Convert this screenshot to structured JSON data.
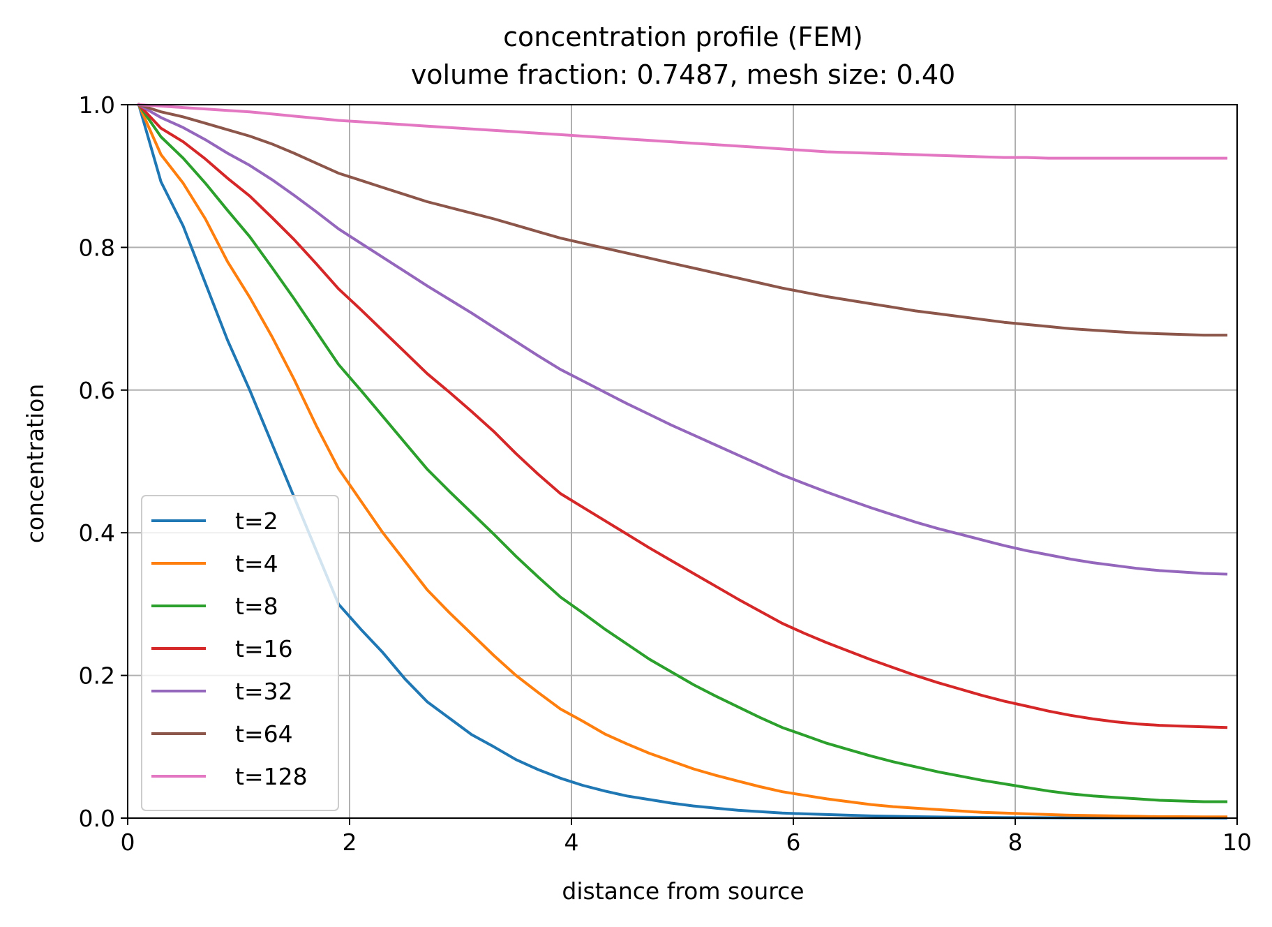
{
  "chart_data": {
    "type": "line",
    "title": "concentration profile (FEM)",
    "subtitle": "volume fraction: 0.7487, mesh size: 0.40",
    "xlabel": "distance from source",
    "ylabel": "concentration",
    "xlim": [
      0,
      10
    ],
    "ylim": [
      0,
      1
    ],
    "xticks": [
      "0",
      "2",
      "4",
      "6",
      "8",
      "10"
    ],
    "yticks": [
      "0.0",
      "0.2",
      "0.4",
      "0.6",
      "0.8",
      "1.0"
    ],
    "grid": true,
    "legend_position": "lower-left",
    "x": [
      0.1,
      0.3,
      0.5,
      0.7,
      0.9,
      1.1,
      1.3,
      1.5,
      1.7,
      1.9,
      2.1,
      2.3,
      2.5,
      2.7,
      2.9,
      3.1,
      3.3,
      3.5,
      3.7,
      3.9,
      4.1,
      4.3,
      4.5,
      4.7,
      4.9,
      5.1,
      5.3,
      5.5,
      5.7,
      5.9,
      6.1,
      6.3,
      6.5,
      6.7,
      6.9,
      7.1,
      7.3,
      7.5,
      7.7,
      7.9,
      8.1,
      8.3,
      8.5,
      8.7,
      8.9,
      9.1,
      9.3,
      9.5,
      9.7,
      9.9
    ],
    "series": [
      {
        "name": "t=2",
        "color": "#1f77b4",
        "values": [
          1.0,
          0.892,
          0.83,
          0.75,
          0.67,
          0.6,
          0.525,
          0.45,
          0.375,
          0.3,
          0.265,
          0.232,
          0.195,
          0.163,
          0.14,
          0.117,
          0.1,
          0.082,
          0.068,
          0.056,
          0.046,
          0.038,
          0.031,
          0.026,
          0.021,
          0.017,
          0.014,
          0.011,
          0.009,
          0.007,
          0.006,
          0.005,
          0.004,
          0.003,
          0.0025,
          0.002,
          0.0016,
          0.0013,
          0.001,
          0.0008,
          0.0006,
          0.0005,
          0.0004,
          0.0003,
          0.0002,
          0.0002,
          0.0001,
          0.0001,
          0.0001,
          0.0
        ]
      },
      {
        "name": "t=4",
        "color": "#ff7f0e",
        "values": [
          1.0,
          0.93,
          0.89,
          0.84,
          0.78,
          0.73,
          0.675,
          0.615,
          0.55,
          0.49,
          0.445,
          0.4,
          0.36,
          0.32,
          0.288,
          0.258,
          0.228,
          0.2,
          0.176,
          0.153,
          0.136,
          0.118,
          0.104,
          0.091,
          0.08,
          0.069,
          0.06,
          0.052,
          0.044,
          0.037,
          0.032,
          0.027,
          0.023,
          0.019,
          0.016,
          0.014,
          0.012,
          0.01,
          0.008,
          0.007,
          0.006,
          0.005,
          0.004,
          0.0035,
          0.003,
          0.0025,
          0.002,
          0.002,
          0.0018,
          0.0017
        ]
      },
      {
        "name": "t=8",
        "color": "#2ca02c",
        "values": [
          1.0,
          0.955,
          0.925,
          0.89,
          0.852,
          0.815,
          0.772,
          0.728,
          0.682,
          0.636,
          0.6,
          0.563,
          0.526,
          0.489,
          0.458,
          0.428,
          0.398,
          0.367,
          0.338,
          0.31,
          0.288,
          0.265,
          0.244,
          0.223,
          0.205,
          0.187,
          0.171,
          0.156,
          0.141,
          0.127,
          0.116,
          0.105,
          0.096,
          0.087,
          0.079,
          0.072,
          0.065,
          0.059,
          0.053,
          0.048,
          0.043,
          0.038,
          0.034,
          0.031,
          0.029,
          0.027,
          0.025,
          0.024,
          0.023,
          0.023
        ]
      },
      {
        "name": "t=16",
        "color": "#d62728",
        "values": [
          1.0,
          0.967,
          0.948,
          0.924,
          0.897,
          0.872,
          0.842,
          0.811,
          0.777,
          0.742,
          0.713,
          0.683,
          0.653,
          0.623,
          0.597,
          0.57,
          0.542,
          0.511,
          0.482,
          0.455,
          0.436,
          0.417,
          0.398,
          0.379,
          0.361,
          0.343,
          0.325,
          0.307,
          0.29,
          0.273,
          0.259,
          0.246,
          0.234,
          0.222,
          0.211,
          0.2,
          0.19,
          0.181,
          0.172,
          0.164,
          0.157,
          0.15,
          0.144,
          0.139,
          0.135,
          0.132,
          0.13,
          0.129,
          0.128,
          0.127
        ]
      },
      {
        "name": "t=32",
        "color": "#9467bd",
        "values": [
          1.0,
          0.982,
          0.968,
          0.951,
          0.932,
          0.915,
          0.895,
          0.873,
          0.85,
          0.826,
          0.806,
          0.786,
          0.766,
          0.746,
          0.727,
          0.708,
          0.688,
          0.668,
          0.648,
          0.629,
          0.613,
          0.597,
          0.581,
          0.566,
          0.551,
          0.537,
          0.523,
          0.509,
          0.495,
          0.481,
          0.469,
          0.457,
          0.446,
          0.435,
          0.425,
          0.415,
          0.406,
          0.398,
          0.39,
          0.382,
          0.375,
          0.369,
          0.363,
          0.358,
          0.354,
          0.35,
          0.347,
          0.345,
          0.343,
          0.342
        ]
      },
      {
        "name": "t=64",
        "color": "#8c564b",
        "values": [
          1.0,
          0.99,
          0.983,
          0.974,
          0.965,
          0.956,
          0.945,
          0.932,
          0.918,
          0.904,
          0.894,
          0.884,
          0.874,
          0.864,
          0.856,
          0.848,
          0.84,
          0.831,
          0.822,
          0.813,
          0.806,
          0.799,
          0.792,
          0.785,
          0.778,
          0.771,
          0.764,
          0.757,
          0.75,
          0.743,
          0.737,
          0.731,
          0.726,
          0.721,
          0.716,
          0.711,
          0.707,
          0.703,
          0.699,
          0.695,
          0.692,
          0.689,
          0.686,
          0.684,
          0.682,
          0.68,
          0.679,
          0.678,
          0.677,
          0.677
        ]
      },
      {
        "name": "t=128",
        "color": "#e377c2",
        "values": [
          1.0,
          0.998,
          0.996,
          0.994,
          0.992,
          0.99,
          0.987,
          0.984,
          0.981,
          0.978,
          0.976,
          0.974,
          0.972,
          0.97,
          0.968,
          0.966,
          0.964,
          0.962,
          0.96,
          0.958,
          0.956,
          0.954,
          0.952,
          0.95,
          0.948,
          0.946,
          0.944,
          0.942,
          0.94,
          0.938,
          0.936,
          0.934,
          0.933,
          0.932,
          0.931,
          0.93,
          0.929,
          0.928,
          0.927,
          0.926,
          0.926,
          0.925,
          0.925,
          0.925,
          0.925,
          0.925,
          0.925,
          0.925,
          0.925,
          0.925
        ]
      }
    ]
  }
}
